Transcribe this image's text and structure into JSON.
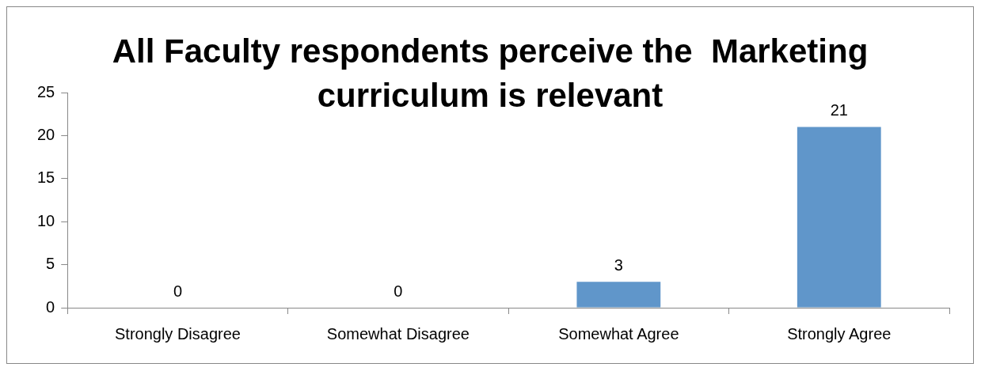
{
  "chart_data": {
    "type": "bar",
    "title": "All Faculty respondents perceive the  Marketing curriculum is relevant",
    "categories": [
      "Strongly Disagree",
      "Somewhat Disagree",
      "Somewhat Agree",
      "Strongly Agree"
    ],
    "values": [
      0,
      0,
      3,
      21
    ],
    "color": "#6096ca",
    "ylim": [
      0,
      25
    ],
    "yticks": [
      0,
      5,
      10,
      15,
      20,
      25
    ],
    "grid": false,
    "legend": false,
    "data_labels": true
  }
}
